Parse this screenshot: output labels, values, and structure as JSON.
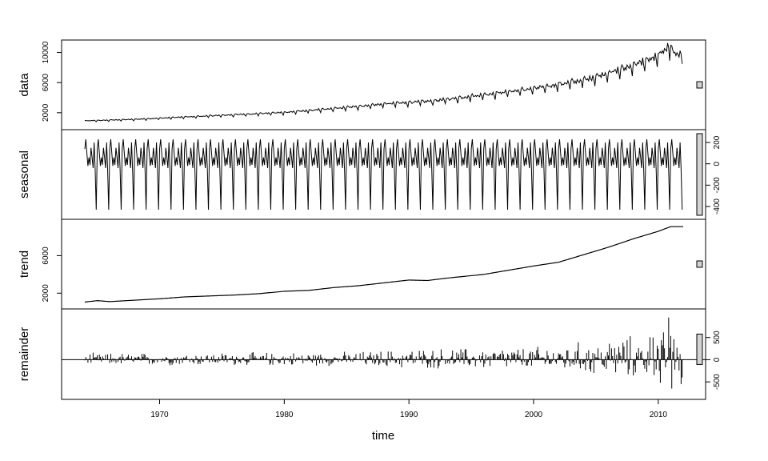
{
  "chart_data": {
    "type": "line",
    "title": "",
    "xlabel": "time",
    "xlim": [
      1964,
      2012
    ],
    "x_ticks": [
      1970,
      1980,
      1990,
      2000,
      2010
    ],
    "x_tick_labels": [
      "1970",
      "1980",
      "1990",
      "2000",
      "2010"
    ],
    "grid": false,
    "colors": {
      "line": "#000000",
      "scale_bar_fill": "#d3d3d3",
      "frame": "#000000"
    },
    "panels": [
      {
        "name": "data",
        "ylabel": "data",
        "axis_side": "left",
        "ylim": [
          600,
          10800
        ],
        "y_ticks": [
          2000,
          6000,
          10000
        ],
        "y_tick_labels": [
          "2000",
          "6000",
          "10000"
        ],
        "series_kind": "observed",
        "points": [
          [
            1964.0,
            900
          ],
          [
            1968.0,
            1100
          ],
          [
            1972.0,
            1400
          ],
          [
            1976.0,
            1700
          ],
          [
            1980.0,
            2000
          ],
          [
            1984.0,
            2500
          ],
          [
            1988.0,
            3100
          ],
          [
            1992.0,
            3500
          ],
          [
            1996.0,
            4300
          ],
          [
            2000.0,
            5100
          ],
          [
            2004.0,
            6200
          ],
          [
            2007.0,
            7600
          ],
          [
            2010.0,
            9300
          ],
          [
            2010.8,
            10700
          ],
          [
            2011.5,
            9500
          ],
          [
            2011.9,
            9800
          ]
        ],
        "seasonal_amplitude_start": 300,
        "seasonal_amplitude_end": 900
      },
      {
        "name": "seasonal",
        "ylabel": "seasonal",
        "axis_side": "right",
        "ylim": [
          -460,
          260
        ],
        "y_ticks": [
          200,
          0,
          -200,
          -400
        ],
        "y_tick_labels": [
          "200",
          "0",
          "-200",
          "-400"
        ],
        "series_kind": "seasonal",
        "period": 1,
        "monthly_pattern": [
          140,
          230,
          100,
          -20,
          60,
          -10,
          150,
          60,
          -40,
          200,
          -60,
          -430
        ]
      },
      {
        "name": "trend",
        "ylabel": "trend",
        "axis_side": "left",
        "ylim": [
          1000,
          9200
        ],
        "y_ticks": [
          2000,
          6000
        ],
        "y_tick_labels": [
          "2000",
          "6000"
        ],
        "series_kind": "smooth",
        "points": [
          [
            1964.0,
            1050
          ],
          [
            1965.0,
            1200
          ],
          [
            1966.0,
            1100
          ],
          [
            1968.0,
            1250
          ],
          [
            1970.0,
            1400
          ],
          [
            1972.0,
            1600
          ],
          [
            1974.0,
            1700
          ],
          [
            1976.0,
            1800
          ],
          [
            1978.0,
            1950
          ],
          [
            1980.0,
            2200
          ],
          [
            1982.0,
            2300
          ],
          [
            1984.0,
            2600
          ],
          [
            1986.0,
            2800
          ],
          [
            1988.0,
            3100
          ],
          [
            1990.0,
            3400
          ],
          [
            1991.5,
            3350
          ],
          [
            1993.0,
            3600
          ],
          [
            1996.0,
            4000
          ],
          [
            2000.0,
            4900
          ],
          [
            2002.0,
            5300
          ],
          [
            2004.0,
            6100
          ],
          [
            2006.0,
            6900
          ],
          [
            2008.0,
            7800
          ],
          [
            2010.0,
            8600
          ],
          [
            2011.0,
            9100
          ],
          [
            2012.0,
            9100
          ]
        ]
      },
      {
        "name": "remainder",
        "ylabel": "remainder",
        "axis_side": "right",
        "ylim": [
          -750,
          1000
        ],
        "y_ticks": [
          500,
          0,
          -500
        ],
        "y_tick_labels": [
          "500",
          "0",
          "-500"
        ],
        "series_kind": "bars",
        "baseline": 0,
        "amplitude_envelope": [
          [
            1964,
            150
          ],
          [
            1985,
            180
          ],
          [
            1990,
            250
          ],
          [
            2000,
            300
          ],
          [
            2005,
            450
          ],
          [
            2008,
            550
          ],
          [
            2011,
            700
          ]
        ],
        "notable_spikes": [
          [
            2010.8,
            950
          ],
          [
            2011.1,
            -650
          ],
          [
            2010.2,
            -520
          ],
          [
            2011.8,
            -550
          ],
          [
            2009.6,
            500
          ]
        ]
      }
    ],
    "scale_bars": [
      {
        "panel": "data",
        "range": 1000
      },
      {
        "panel": "seasonal",
        "range": 700
      },
      {
        "panel": "trend",
        "range": 1000
      },
      {
        "panel": "remainder",
        "range": 600
      }
    ]
  }
}
